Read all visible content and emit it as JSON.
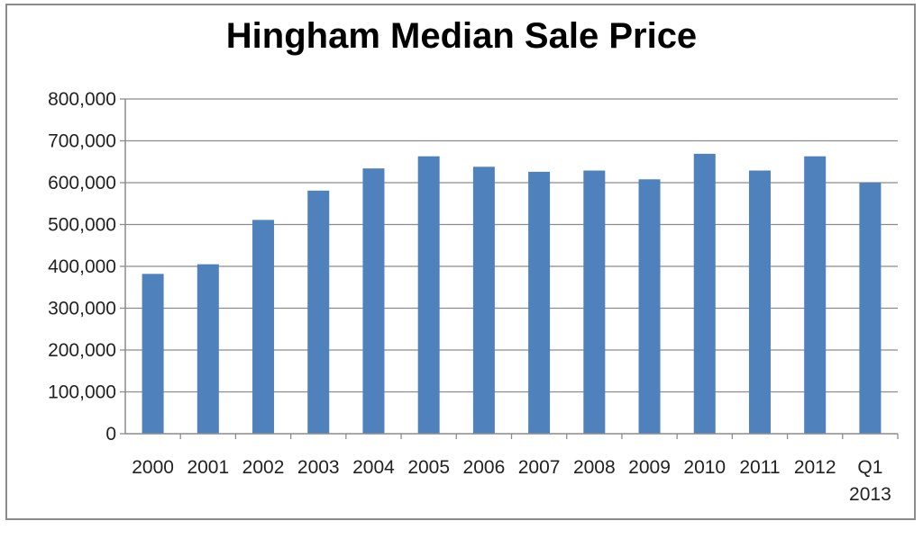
{
  "chart_data": {
    "type": "bar",
    "title": "Hingham Median Sale Price",
    "xlabel": "",
    "ylabel": "",
    "categories": [
      "2000",
      "2001",
      "2002",
      "2003",
      "2004",
      "2005",
      "2006",
      "2007",
      "2008",
      "2009",
      "2010",
      "2011",
      "2012",
      "Q1 2013"
    ],
    "category_lines": [
      [
        "2000"
      ],
      [
        "2001"
      ],
      [
        "2002"
      ],
      [
        "2003"
      ],
      [
        "2004"
      ],
      [
        "2005"
      ],
      [
        "2006"
      ],
      [
        "2007"
      ],
      [
        "2008"
      ],
      [
        "2009"
      ],
      [
        "2010"
      ],
      [
        "2011"
      ],
      [
        "2012"
      ],
      [
        "Q1",
        "2013"
      ]
    ],
    "values": [
      382000,
      405000,
      511000,
      581000,
      634000,
      663000,
      638000,
      626000,
      629000,
      608000,
      669000,
      629000,
      663000,
      600000
    ],
    "ylim": [
      0,
      800000
    ],
    "yticks": [
      0,
      100000,
      200000,
      300000,
      400000,
      500000,
      600000,
      700000,
      800000
    ],
    "ytick_labels": [
      "0",
      "100,000",
      "200,000",
      "300,000",
      "400,000",
      "500,000",
      "600,000",
      "700,000",
      "800,000"
    ],
    "grid": true,
    "legend": "none",
    "bar_color": "#4f81bd",
    "gridline_color": "#8c8c8c"
  }
}
